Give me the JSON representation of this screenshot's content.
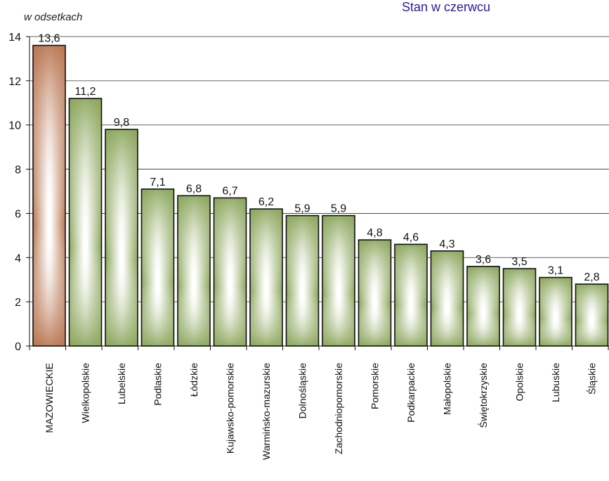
{
  "chart_data": {
    "type": "bar",
    "title": "Stan w czerwcu",
    "ylabel": "w odsetkach",
    "xlabel": "",
    "ylim": [
      0,
      14
    ],
    "yticks": [
      0,
      2,
      4,
      6,
      8,
      10,
      12,
      14
    ],
    "grid": true,
    "categories": [
      "MAZOWIECKIE",
      "Wielkopolskie",
      "Lubelskie",
      "Podlaskie",
      "Łódzkie",
      "Kujawsko-pomorskie",
      "Warmińsko-mazurskie",
      "Dolnośląskie",
      "Zachodniopomorskie",
      "Pomorskie",
      "Podkarpackie",
      "Małopolskie",
      "Świętokrzyskie",
      "Opolskie",
      "Lubuskie",
      "Śląskie"
    ],
    "values": [
      13.6,
      11.2,
      9.8,
      7.1,
      6.8,
      6.7,
      6.2,
      5.9,
      5.9,
      4.8,
      4.6,
      4.3,
      3.6,
      3.5,
      3.1,
      2.8
    ],
    "value_labels": [
      "13,6",
      "11,2",
      "9,8",
      "7,1",
      "6,8",
      "6,7",
      "6,2",
      "5,9",
      "5,9",
      "4,8",
      "4,6",
      "4,3",
      "3,6",
      "3,5",
      "3,1",
      "2,8"
    ],
    "highlight_index": 0,
    "colors": {
      "highlight": "#b87550",
      "bar": "#8aa55a",
      "bar_center": "#ffffff",
      "title": "#2b1b9a"
    }
  }
}
